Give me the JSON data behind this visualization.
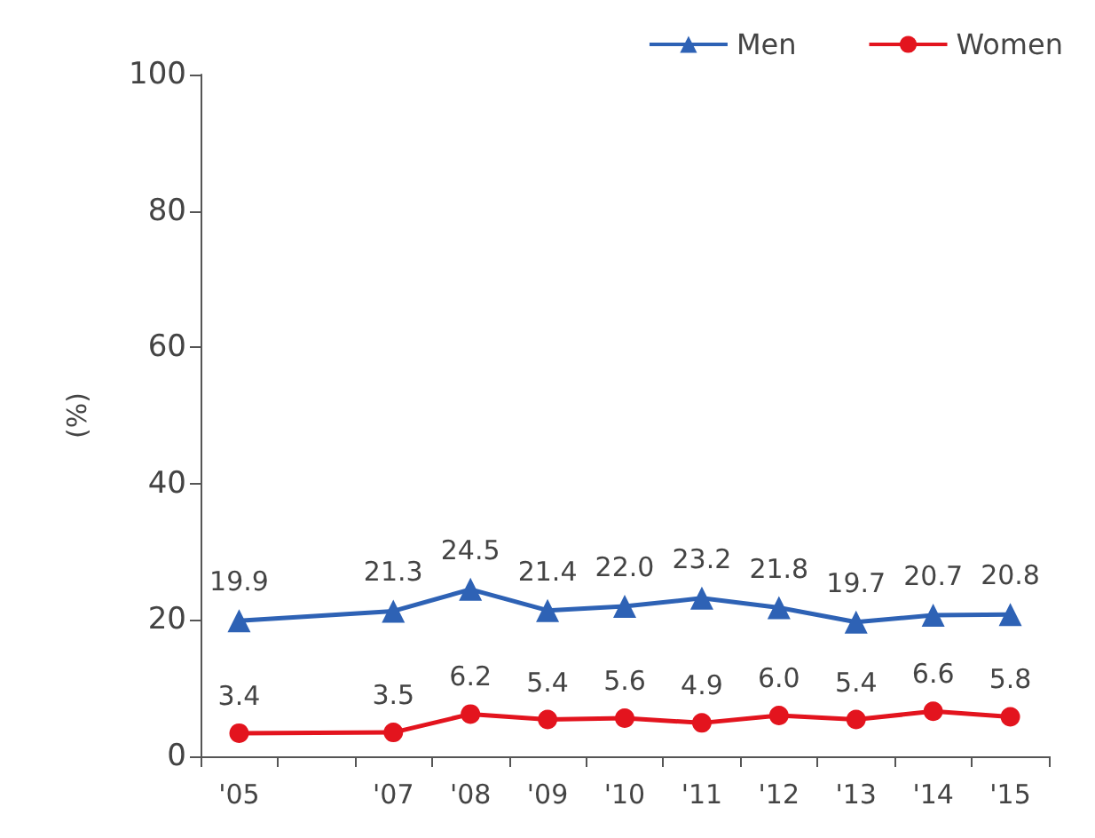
{
  "chart_data": {
    "type": "line",
    "ylabel": "(%)",
    "categories": [
      "'05",
      null,
      "'07",
      "'08",
      "'09",
      "'10",
      "'11",
      "'12",
      "'13",
      "'14",
      "'15"
    ],
    "series": [
      {
        "name": "Men",
        "color": "#2e62b5",
        "marker": "triangle",
        "values": [
          19.9,
          null,
          21.3,
          24.5,
          21.4,
          22.0,
          23.2,
          21.8,
          19.7,
          20.7,
          20.8
        ],
        "value_labels": [
          "19.9",
          null,
          "21.3",
          "24.5",
          "21.4",
          "22.0",
          "23.2",
          "21.8",
          "19.7",
          "20.7",
          "20.8"
        ]
      },
      {
        "name": "Women",
        "color": "#e3141e",
        "marker": "circle",
        "values": [
          3.4,
          null,
          3.5,
          6.2,
          5.4,
          5.6,
          4.9,
          6.0,
          5.4,
          6.6,
          5.8
        ],
        "value_labels": [
          "3.4",
          null,
          "3.5",
          "6.2",
          "5.4",
          "5.6",
          "4.9",
          "6.0",
          "5.4",
          "6.6",
          "5.8"
        ]
      }
    ],
    "ylim": [
      0,
      100
    ],
    "yticks": [
      0,
      20,
      40,
      60,
      80,
      100
    ],
    "grid": false,
    "legend": "top right",
    "line_style": "solid"
  }
}
